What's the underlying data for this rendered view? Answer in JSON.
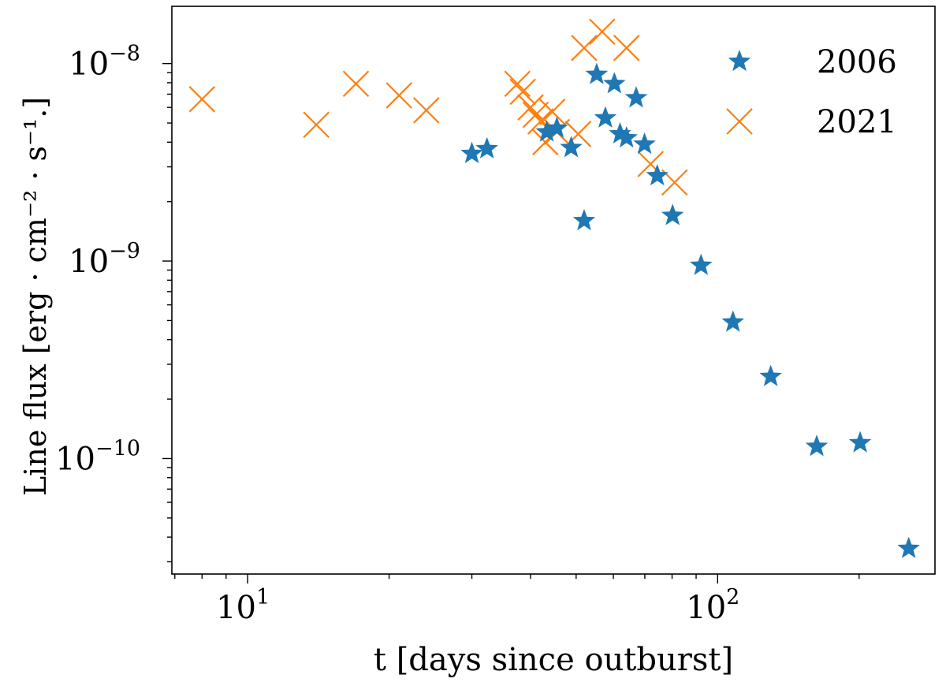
{
  "chart_data": {
    "type": "scatter",
    "title": "",
    "xlabel": "t [days since outburst]",
    "ylabel": "Line flux [erg · cm⁻² · s⁻¹.]",
    "xscale": "log",
    "yscale": "log",
    "xlim": [
      6.9,
      290
    ],
    "ylim": [
      2.6e-11,
      1.95e-08
    ],
    "grid": false,
    "legend_position": "top-right",
    "x_ticks": [
      {
        "value": 10,
        "base": "10",
        "exp": "1"
      },
      {
        "value": 100,
        "base": "10",
        "exp": "2"
      }
    ],
    "y_ticks": [
      {
        "value": 1e-10,
        "base": "10",
        "exp": "−10"
      },
      {
        "value": 1e-09,
        "base": "10",
        "exp": "−9"
      },
      {
        "value": 1e-08,
        "base": "10",
        "exp": "−8"
      }
    ],
    "series": [
      {
        "name": "2006",
        "marker": "star",
        "color": "#1f77b4",
        "x": [
          30,
          32.3,
          43.3,
          45.5,
          48.8,
          52,
          55.3,
          57.7,
          60.3,
          62,
          64,
          67.1,
          69.9,
          74.4,
          80.2,
          92.2,
          107.8,
          129.7,
          162.5,
          201,
          255
        ],
        "y": [
          3.5e-09,
          3.7e-09,
          4.5e-09,
          4.7e-09,
          3.75e-09,
          1.6e-09,
          8.8e-09,
          5.3e-09,
          7.9e-09,
          4.4e-09,
          4.2e-09,
          6.7e-09,
          3.9e-09,
          2.7e-09,
          1.7e-09,
          9.5e-10,
          4.9e-10,
          2.6e-10,
          1.15e-10,
          1.2e-10,
          3.5e-11
        ]
      },
      {
        "name": "2021",
        "marker": "x",
        "color": "#ff7f0e",
        "x": [
          8,
          14,
          17,
          21,
          24,
          37.5,
          38.5,
          40,
          41,
          42,
          43,
          44.5,
          45.5,
          50.5,
          52,
          56.8,
          64,
          72,
          81
        ],
        "y": [
          6.6e-09,
          4.9e-09,
          7.9e-09,
          6.9e-09,
          5.8e-09,
          7.9e-09,
          7.2e-09,
          6e-09,
          5.5e-09,
          5.1e-09,
          4e-09,
          5.7e-09,
          4.5e-09,
          4.4e-09,
          1.2e-08,
          1.45e-08,
          1.2e-08,
          3.1e-09,
          2.5e-09
        ]
      }
    ]
  }
}
